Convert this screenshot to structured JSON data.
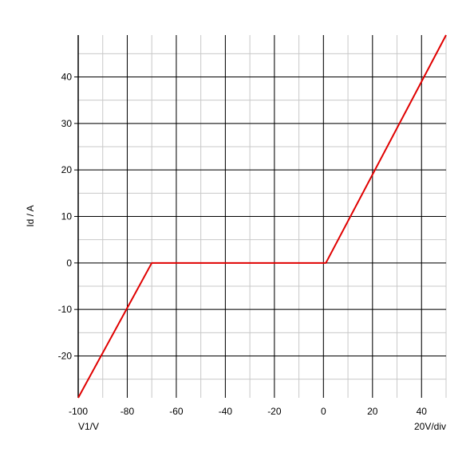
{
  "chart_data": {
    "type": "line",
    "title": "",
    "xlabel": "V1/V",
    "ylabel": "Id / A",
    "scale_note": "20V/div",
    "xlim": [
      -100,
      50
    ],
    "ylim": [
      -29,
      49
    ],
    "x_ticks": [
      -100,
      -80,
      -60,
      -40,
      -20,
      0,
      20,
      40
    ],
    "y_ticks": [
      -20,
      -10,
      0,
      10,
      20,
      30,
      40
    ],
    "grid": true,
    "legend": "none",
    "series": [
      {
        "x": [
          -100,
          -70,
          1,
          50
        ],
        "y": [
          -29,
          0,
          0,
          49
        ],
        "color": "#e00000"
      }
    ]
  }
}
